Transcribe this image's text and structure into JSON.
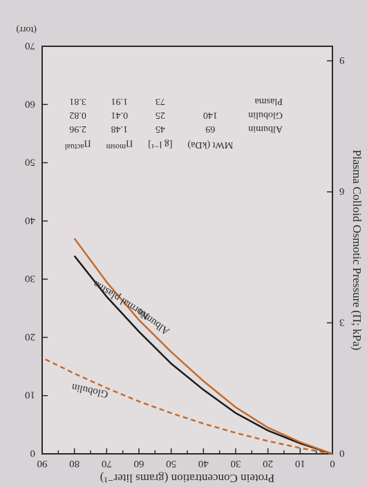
{
  "chart": {
    "type": "line",
    "bg_outer": "#d8d3d6",
    "bg_inner": "#e2dee0",
    "axis_color": "#2a2a2a",
    "title_x": "Protein Concentration (grams liter⁻¹)",
    "title_y_left": "Plasma Colloid Osmotic Pressure (Π; kPa)",
    "unit_right": "(torr)",
    "x": {
      "min": 0,
      "max": 90,
      "ticks": [
        0,
        10,
        20,
        30,
        40,
        50,
        60,
        70,
        80,
        90
      ],
      "fs": 15
    },
    "y_left": {
      "min": 0,
      "max": 9,
      "ticks": [
        0,
        3,
        6,
        9
      ],
      "fs": 15
    },
    "y_right": {
      "min": 0,
      "max": 70,
      "ticks": [
        0,
        10,
        20,
        30,
        40,
        50,
        60,
        70
      ],
      "fs": 15
    },
    "series": {
      "albumin": {
        "label": "Albumin",
        "color": "#c46a2a",
        "dash": "",
        "width": 2.5,
        "pts": [
          [
            0,
            0
          ],
          [
            10,
            2
          ],
          [
            20,
            4.5
          ],
          [
            30,
            8
          ],
          [
            40,
            12.5
          ],
          [
            50,
            17.5
          ],
          [
            60,
            23
          ],
          [
            70,
            29.5
          ],
          [
            80,
            37
          ]
        ]
      },
      "normal_plasma": {
        "label": "Normal plasma",
        "color": "#1a1a1a",
        "dash": "",
        "width": 2.5,
        "pts": [
          [
            0,
            0
          ],
          [
            10,
            1.8
          ],
          [
            20,
            4
          ],
          [
            30,
            7
          ],
          [
            40,
            11
          ],
          [
            50,
            15.5
          ],
          [
            60,
            21
          ],
          [
            70,
            27
          ],
          [
            80,
            34
          ]
        ]
      },
      "globulin": {
        "label": "Globulin",
        "color": "#c46a2a",
        "dash": "7 5",
        "width": 2.5,
        "pts": [
          [
            0,
            0
          ],
          [
            10,
            1
          ],
          [
            20,
            2.2
          ],
          [
            30,
            3.6
          ],
          [
            40,
            5.2
          ],
          [
            50,
            7
          ],
          [
            60,
            9
          ],
          [
            70,
            11.3
          ],
          [
            80,
            13.8
          ],
          [
            90,
            16.5
          ]
        ]
      }
    },
    "table": {
      "headers": [
        "",
        "MWt (kDa)",
        "[g l⁻¹]",
        "Π_mosm",
        "Π_actual"
      ],
      "rows": [
        [
          "Albumin",
          "69",
          "45",
          "1.48",
          "2.96"
        ],
        [
          "Globulin",
          "140",
          "25",
          "0.41",
          "0.82"
        ],
        [
          "Plasma",
          "",
          "73",
          "1.91",
          "3.81"
        ]
      ]
    }
  }
}
